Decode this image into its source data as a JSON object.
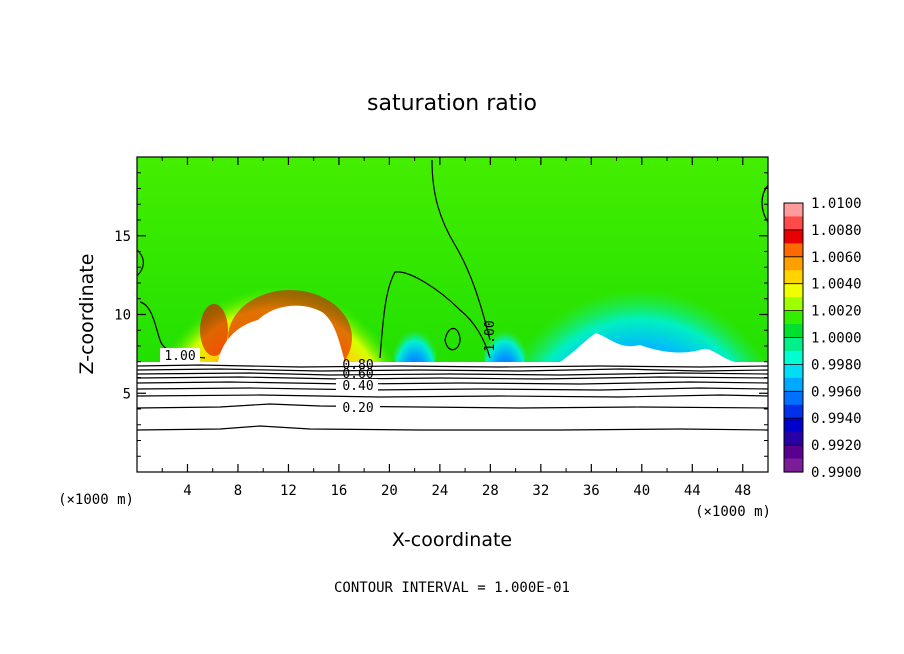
{
  "chart_data": {
    "type": "heatmap",
    "title": "saturation ratio",
    "xlabel": "X-coordinate",
    "ylabel": "Z-coordinate",
    "x_unit": "(×1000 m)",
    "y_unit": "(×1000 m)",
    "xlim": [
      0,
      50
    ],
    "ylim": [
      0,
      20
    ],
    "x_ticks": [
      4,
      8,
      12,
      16,
      20,
      24,
      28,
      32,
      36,
      40,
      44,
      48
    ],
    "y_ticks": [
      5,
      10,
      15
    ],
    "colorbar": {
      "min": 0.99,
      "max": 1.01,
      "tick_labels": [
        "1.0100",
        "1.0080",
        "1.0060",
        "1.0040",
        "1.0020",
        "1.0000",
        "0.9980",
        "0.9960",
        "0.9940",
        "0.9920",
        "0.9900"
      ],
      "colors": [
        "#ff9b9b",
        "#ff4a4a",
        "#e60000",
        "#ff6a00",
        "#ff9f00",
        "#ffd400",
        "#f0ff00",
        "#9eff00",
        "#33ee00",
        "#00e02c",
        "#00f08c",
        "#00ffd0",
        "#00ddf5",
        "#00a8ff",
        "#0070ff",
        "#0030e8",
        "#0000cc",
        "#2800a8",
        "#5a0090",
        "#7a1d96"
      ]
    },
    "contour_interval": "CONTOUR INTERVAL = 1.000E-01",
    "contour_labels": [
      "1.00",
      "1.00",
      "0.80",
      "0.60",
      "0.40",
      "0.20"
    ]
  }
}
